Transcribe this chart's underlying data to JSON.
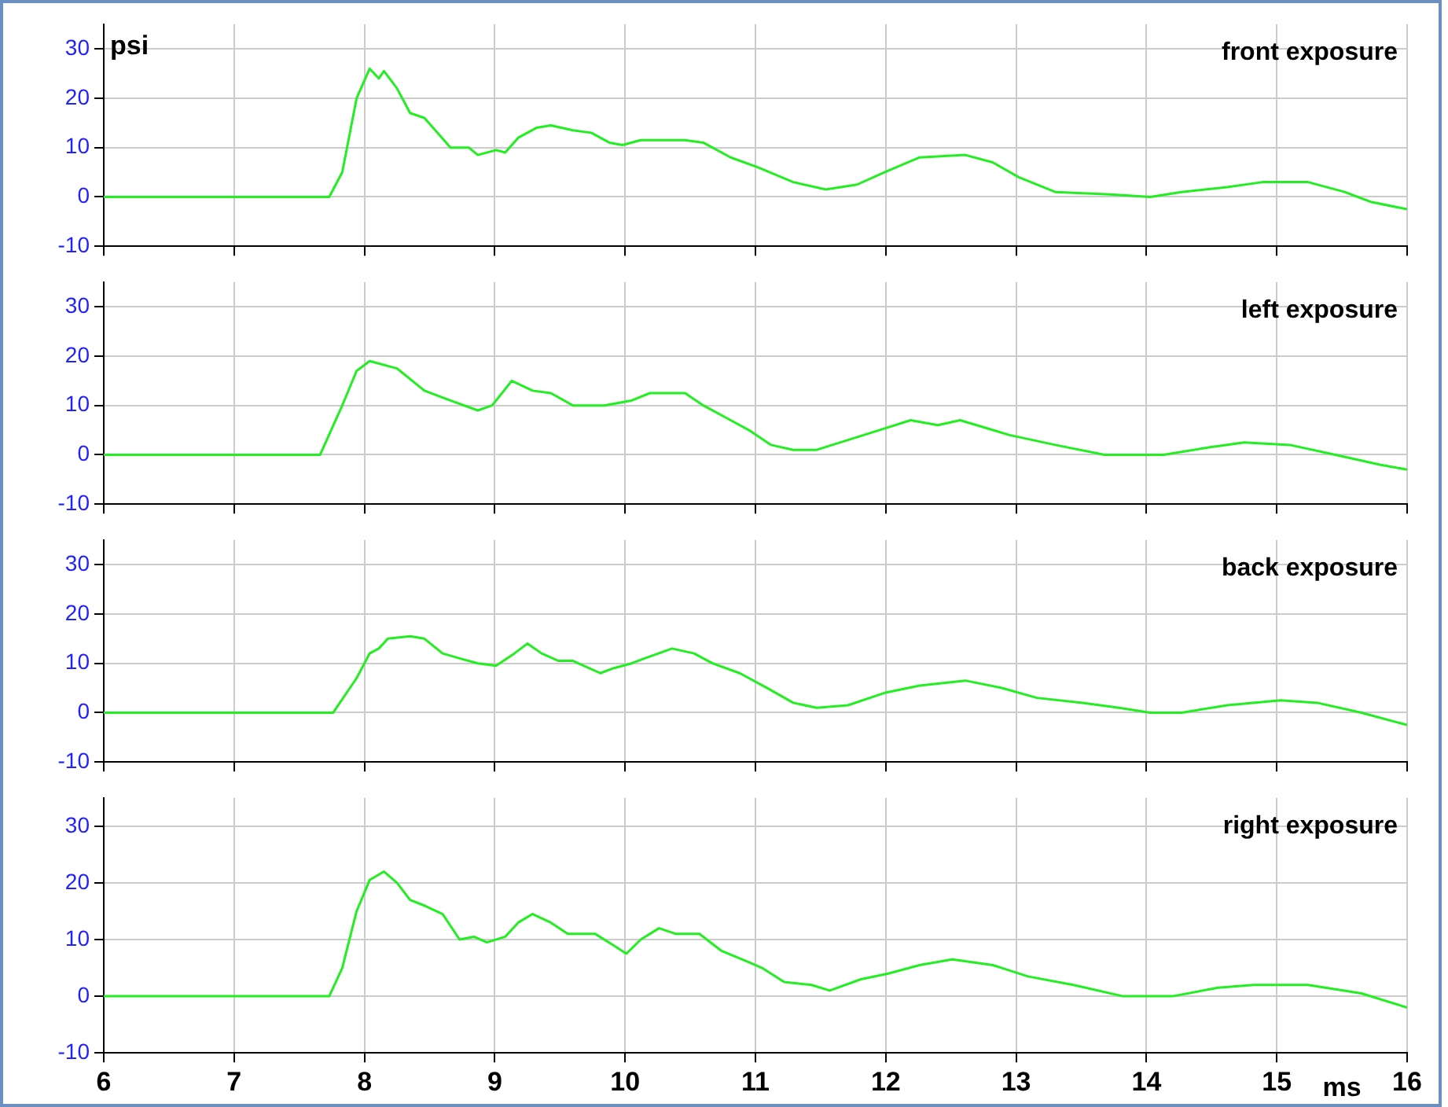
{
  "chart_data": [
    {
      "type": "line",
      "ylabel": "psi",
      "annotations": [
        "front exposure"
      ],
      "xlim": [
        6,
        16
      ],
      "xticks": [
        6,
        7,
        8,
        9,
        10,
        11,
        12,
        13,
        14,
        15,
        16
      ],
      "ylim": [
        -10,
        35
      ],
      "yticks": [
        -10,
        0,
        10,
        20,
        30
      ],
      "grid": true,
      "legend": false,
      "marker": "none",
      "tick_labels": "y",
      "series": [
        {
          "color": "#22ee22",
          "x": [
            6,
            7.73,
            7.83,
            7.94,
            8.04,
            8.11,
            8.15,
            8.25,
            8.35,
            8.46,
            8.56,
            8.66,
            8.8,
            8.87,
            9.01,
            9.08,
            9.18,
            9.32,
            9.43,
            9.6,
            9.74,
            9.88,
            9.98,
            10.12,
            10.46,
            10.6,
            10.81,
            11.02,
            11.29,
            11.54,
            11.78,
            11.99,
            12.26,
            12.61,
            12.82,
            13.02,
            13.3,
            13.72,
            14.03,
            14.27,
            14.62,
            14.89,
            15.24,
            15.52,
            15.72,
            16
          ],
          "values": [
            0,
            0,
            5,
            20,
            26,
            24,
            25.5,
            22,
            17,
            16,
            13,
            10,
            10,
            8.5,
            9.5,
            9,
            12,
            14,
            14.5,
            13.5,
            13,
            11,
            10.5,
            11.5,
            11.5,
            11,
            8,
            6,
            3,
            1.5,
            2.5,
            5,
            8,
            8.5,
            7,
            4,
            1,
            0.5,
            0,
            1,
            2,
            3,
            3,
            1,
            -1,
            -2.5
          ]
        }
      ]
    },
    {
      "type": "line",
      "annotations": [
        "left exposure"
      ],
      "xlim": [
        6,
        16
      ],
      "xticks": [
        6,
        7,
        8,
        9,
        10,
        11,
        12,
        13,
        14,
        15,
        16
      ],
      "ylim": [
        -10,
        35
      ],
      "yticks": [
        -10,
        0,
        10,
        20,
        30
      ],
      "grid": true,
      "legend": false,
      "marker": "none",
      "tick_labels": "y",
      "series": [
        {
          "color": "#22ee22",
          "x": [
            6,
            7.66,
            7.83,
            7.94,
            8.04,
            8.25,
            8.46,
            8.66,
            8.87,
            8.98,
            9.13,
            9.29,
            9.43,
            9.6,
            9.84,
            10.05,
            10.19,
            10.46,
            10.6,
            10.81,
            10.95,
            11.12,
            11.29,
            11.47,
            11.71,
            11.95,
            12.19,
            12.4,
            12.57,
            12.95,
            13.3,
            13.68,
            14.13,
            14.48,
            14.75,
            15.1,
            15.45,
            15.79,
            16
          ],
          "values": [
            0,
            0,
            10,
            17,
            19,
            17.5,
            13,
            11,
            9,
            10,
            15,
            13,
            12.5,
            10,
            10,
            11,
            12.5,
            12.5,
            10,
            7,
            5,
            2,
            1,
            1,
            3,
            5,
            7,
            6,
            7,
            4,
            2,
            0,
            0,
            1.5,
            2.5,
            2,
            0,
            -2,
            -3
          ]
        }
      ]
    },
    {
      "type": "line",
      "annotations": [
        "back exposure"
      ],
      "xlim": [
        6,
        16
      ],
      "xticks": [
        6,
        7,
        8,
        9,
        10,
        11,
        12,
        13,
        14,
        15,
        16
      ],
      "ylim": [
        -10,
        35
      ],
      "yticks": [
        -10,
        0,
        10,
        20,
        30
      ],
      "grid": true,
      "legend": false,
      "marker": "none",
      "tick_labels": "y",
      "series": [
        {
          "color": "#22ee22",
          "x": [
            6,
            7.76,
            7.94,
            8.04,
            8.11,
            8.18,
            8.35,
            8.46,
            8.6,
            8.73,
            8.87,
            9.01,
            9.15,
            9.25,
            9.36,
            9.49,
            9.6,
            9.81,
            9.91,
            10.05,
            10.15,
            10.36,
            10.53,
            10.67,
            10.88,
            11.09,
            11.29,
            11.47,
            11.71,
            11.99,
            12.26,
            12.61,
            12.89,
            13.16,
            13.51,
            13.79,
            14.03,
            14.27,
            14.62,
            15.03,
            15.31,
            15.65,
            16
          ],
          "values": [
            0,
            0,
            7,
            12,
            13,
            15,
            15.5,
            15,
            12,
            11,
            10,
            9.5,
            12,
            14,
            12,
            10.5,
            10.5,
            8,
            9,
            10,
            11,
            13,
            12,
            10,
            8,
            5,
            2,
            1,
            1.5,
            4,
            5.5,
            6.5,
            5,
            3,
            2,
            1,
            0,
            0,
            1.5,
            2.5,
            2,
            0,
            -2.5
          ]
        }
      ]
    },
    {
      "type": "line",
      "xlabel": "ms",
      "annotations": [
        "right exposure"
      ],
      "xlim": [
        6,
        16
      ],
      "xticks": [
        6,
        7,
        8,
        9,
        10,
        11,
        12,
        13,
        14,
        15,
        16
      ],
      "ylim": [
        -10,
        35
      ],
      "yticks": [
        -10,
        0,
        10,
        20,
        30
      ],
      "grid": true,
      "legend": false,
      "marker": "none",
      "series": [
        {
          "color": "#22ee22",
          "x": [
            6,
            7.73,
            7.83,
            7.94,
            8.04,
            8.15,
            8.25,
            8.35,
            8.46,
            8.6,
            8.73,
            8.84,
            8.94,
            9.08,
            9.18,
            9.29,
            9.43,
            9.56,
            9.77,
            9.91,
            10.01,
            10.12,
            10.26,
            10.39,
            10.57,
            10.74,
            10.95,
            11.05,
            11.22,
            11.43,
            11.57,
            11.81,
            12.02,
            12.26,
            12.51,
            12.82,
            13.09,
            13.44,
            13.82,
            14.2,
            14.55,
            14.82,
            15.24,
            15.65,
            16
          ],
          "values": [
            0,
            0,
            5,
            15,
            20.5,
            22,
            20,
            17,
            16,
            14.5,
            10,
            10.5,
            9.5,
            10.5,
            13,
            14.5,
            13,
            11,
            11,
            9,
            7.5,
            10,
            12,
            11,
            11,
            8,
            6,
            5,
            2.5,
            2,
            1,
            3,
            4,
            5.5,
            6.5,
            5.5,
            3.5,
            2,
            0,
            0,
            1.5,
            2,
            2,
            0.5,
            -2
          ]
        }
      ]
    }
  ]
}
